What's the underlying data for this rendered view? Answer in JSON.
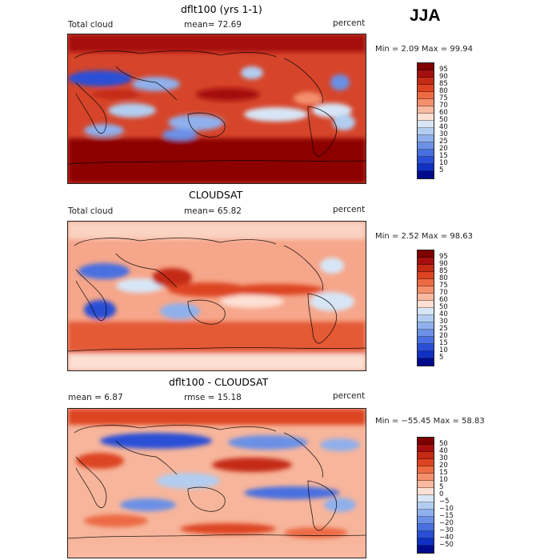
{
  "season_label": "JJA",
  "panels": [
    {
      "title": "dflt100 (yrs 1-1)",
      "left_text": "Total cloud",
      "center_text": "mean=  72.69",
      "right_text": "percent",
      "stats": "Min =    2.09 Max =   99.94",
      "colorbar": {
        "labels": [
          "95",
          "90",
          "85",
          "80",
          "75",
          "70",
          "60",
          "50",
          "40",
          "30",
          "25",
          "20",
          "15",
          "10",
          "5"
        ],
        "colors": [
          "#7f0000",
          "#a50f0f",
          "#c42a14",
          "#dd4421",
          "#ec6b45",
          "#f48f6c",
          "#f9b9a0",
          "#fde0d4",
          "#d7e6f7",
          "#b2cdf0",
          "#8fb0ec",
          "#6b90e6",
          "#4870e0",
          "#2a4fd6",
          "#1030c4",
          "#000b8c"
        ]
      }
    },
    {
      "title": "CLOUDSAT",
      "left_text": "Total cloud",
      "center_text": "mean=  65.82",
      "right_text": "percent",
      "stats": "Min =    2.52 Max =   98.63",
      "colorbar": {
        "labels": [
          "95",
          "90",
          "85",
          "80",
          "75",
          "70",
          "60",
          "50",
          "40",
          "30",
          "25",
          "20",
          "15",
          "10",
          "5"
        ],
        "colors": [
          "#7f0000",
          "#a50f0f",
          "#c42a14",
          "#dd4421",
          "#ec6b45",
          "#f48f6c",
          "#f9b9a0",
          "#fde0d4",
          "#d7e6f7",
          "#b2cdf0",
          "#8fb0ec",
          "#6b90e6",
          "#4870e0",
          "#2a4fd6",
          "#1030c4",
          "#000b8c"
        ]
      }
    },
    {
      "title": "dflt100 - CLOUDSAT",
      "left_text": "mean =    6.87",
      "center_text": "rmse =   15.18",
      "right_text": "percent",
      "stats": "Min = −55.45 Max =   58.83",
      "colorbar": {
        "labels": [
          "50",
          "40",
          "30",
          "20",
          "15",
          "10",
          "5",
          "0",
          "−5",
          "−10",
          "−15",
          "−20",
          "−30",
          "−40",
          "−50"
        ],
        "colors": [
          "#7f0000",
          "#a50f0f",
          "#c42a14",
          "#dd4421",
          "#ec6b45",
          "#f48f6c",
          "#f9b9a0",
          "#fde0d4",
          "#d7e6f7",
          "#b2cdf0",
          "#8fb0ec",
          "#6b90e6",
          "#4870e0",
          "#2a4fd6",
          "#1030c4",
          "#000b8c"
        ]
      }
    }
  ]
}
